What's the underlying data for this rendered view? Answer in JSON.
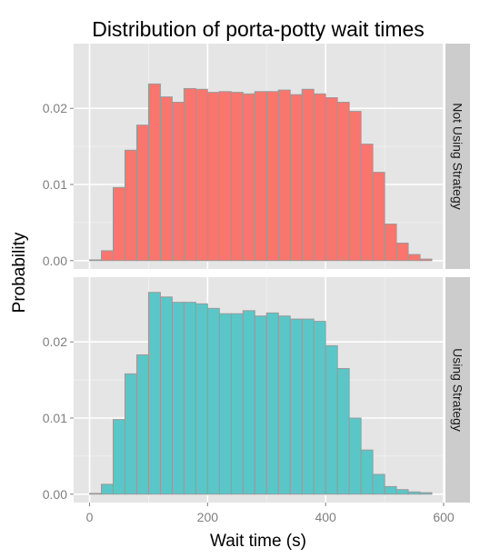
{
  "chart_data": {
    "type": "bar",
    "title": "Distribution of porta-potty wait times",
    "xlabel": "Wait time (s)",
    "ylabel": "Probability",
    "xlim": [
      -27,
      600
    ],
    "ylim": [
      -0.0011,
      0.0285
    ],
    "xticks": [
      0,
      200,
      400,
      600
    ],
    "yticks": [
      0.0,
      0.01,
      0.02
    ],
    "ytick_labels": [
      "0.00",
      "0.01",
      "0.02"
    ],
    "bin_width": 20,
    "bin_starts": [
      0,
      20,
      40,
      60,
      80,
      100,
      120,
      140,
      160,
      180,
      200,
      220,
      240,
      260,
      280,
      300,
      320,
      340,
      360,
      380,
      400,
      420,
      440,
      460,
      480,
      500,
      520,
      540,
      560
    ],
    "grid": true,
    "legend": "none",
    "colors": {
      "panel_bg": "#e5e5e5",
      "grid_major": "#ffffff",
      "grid_minor": "#f2f2f2",
      "strip_bg": "#cccccc",
      "bar_outline": "#999999"
    },
    "panels": [
      {
        "strip": "Not Using Strategy",
        "color": "#f8766d",
        "values": [
          0.0001,
          0.0013,
          0.0096,
          0.0145,
          0.0178,
          0.0232,
          0.0215,
          0.0208,
          0.0226,
          0.0225,
          0.0221,
          0.0222,
          0.0221,
          0.0219,
          0.0222,
          0.0222,
          0.0224,
          0.0218,
          0.0225,
          0.0219,
          0.0214,
          0.0208,
          0.0196,
          0.0153,
          0.0116,
          0.0048,
          0.0023,
          0.0008,
          0.0002
        ]
      },
      {
        "strip": "Using Strategy",
        "color": "#5bc6c8",
        "values": [
          0.0001,
          0.0013,
          0.0098,
          0.0158,
          0.0183,
          0.0265,
          0.0259,
          0.0252,
          0.0252,
          0.025,
          0.0244,
          0.0237,
          0.0237,
          0.0241,
          0.0234,
          0.0238,
          0.0234,
          0.023,
          0.023,
          0.0227,
          0.0195,
          0.0165,
          0.01,
          0.0058,
          0.0026,
          0.001,
          0.0006,
          0.0003,
          0.0002
        ]
      }
    ]
  }
}
